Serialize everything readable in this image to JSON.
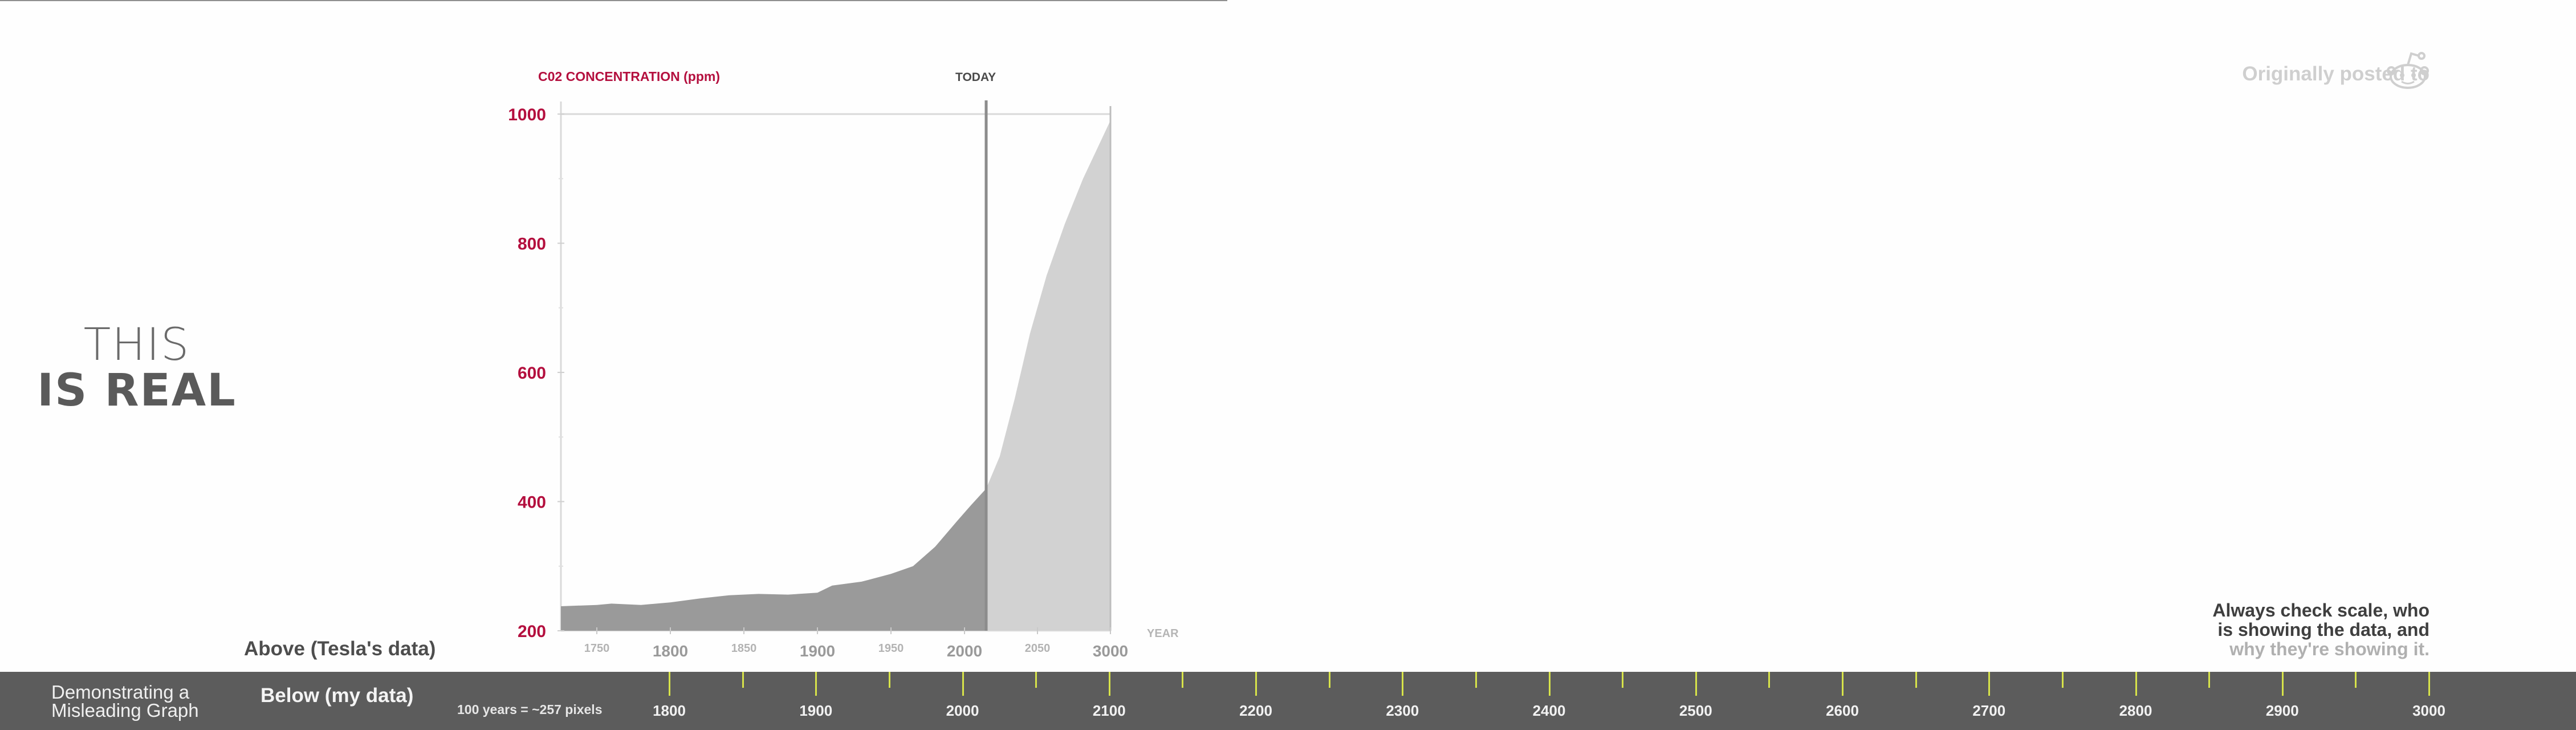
{
  "headline": {
    "line1": "THIS",
    "line2": "IS REAL"
  },
  "reddit": {
    "text": "Originally posted to",
    "icon": "reddit-alien-icon"
  },
  "label_above": "Above (Tesla's data)",
  "caption": {
    "line1": "Always check scale, who",
    "line2": "is showing the data, and",
    "line3": "why they're showing it."
  },
  "bottom_bar": {
    "title_line1": "Demonstrating a",
    "title_line2": "Misleading Graph",
    "below_label": "Below (my data)",
    "scale_note": "100 years = ~257 pixels",
    "timeline_labels": [
      "1800",
      "1900",
      "2000",
      "2100",
      "2200",
      "2300",
      "2400",
      "2500",
      "2600",
      "2700",
      "2800",
      "2900",
      "3000"
    ],
    "tick_color": "#d7e34a"
  },
  "chart_data": {
    "type": "area",
    "ylabel": "C02 CONCENTRATION (ppm)",
    "xlabel": "YEAR",
    "annotation": "TODAY",
    "ylim": [
      200,
      1000
    ],
    "yticks": [
      200,
      400,
      600,
      800,
      1000
    ],
    "xtick_labels": [
      "1750",
      "1800",
      "1850",
      "1900",
      "1950",
      "2000",
      "2050",
      "3000"
    ],
    "today_year": 2016,
    "series": [
      {
        "name": "",
        "x": [
          1730,
          1750,
          1760,
          1780,
          1800,
          1820,
          1840,
          1860,
          1880,
          1900,
          1910,
          1930,
          1950,
          1965,
          1980,
          1995,
          2005,
          2016
        ],
        "y": [
          238,
          240,
          242,
          240,
          244,
          250,
          255,
          257,
          256,
          259,
          270,
          276,
          288,
          300,
          330,
          370,
          395,
          420
        ],
        "color": "#9a9a9a"
      },
      {
        "name": "",
        "x": [
          2016,
          2025,
          2035,
          2045,
          2055,
          2065,
          2075,
          2085,
          2090
        ],
        "y": [
          420,
          470,
          560,
          660,
          750,
          830,
          900,
          960,
          990
        ],
        "color": "#d2d2d2"
      }
    ],
    "grid": false,
    "axis_color": "#b40f3e"
  }
}
